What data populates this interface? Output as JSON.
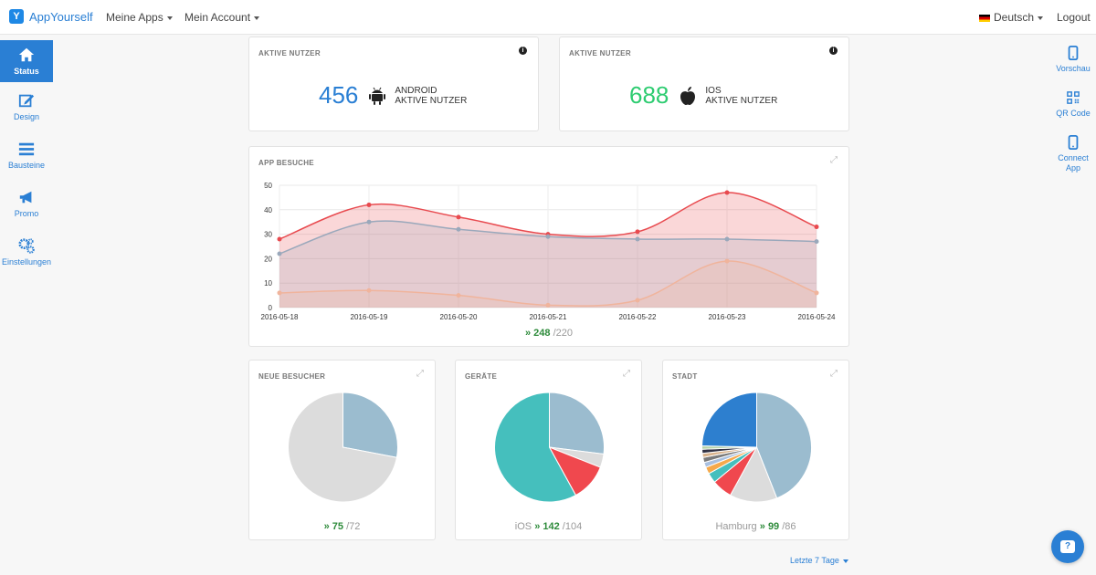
{
  "nav": {
    "logo_text": "AppYourself",
    "menu_apps": "Meine Apps",
    "menu_account": "Mein Account",
    "language": "Deutsch",
    "logout": "Logout"
  },
  "sidebar_left": [
    {
      "label": "Status",
      "icon": "home-icon",
      "active": true
    },
    {
      "label": "Design",
      "icon": "edit-icon"
    },
    {
      "label": "Bausteine",
      "icon": "menu-icon"
    },
    {
      "label": "Promo",
      "icon": "megaphone-icon"
    },
    {
      "label": "Einstellungen",
      "icon": "gears-icon"
    }
  ],
  "sidebar_right": [
    {
      "label": "Vorschau",
      "icon": "phone-icon"
    },
    {
      "label": "QR Code",
      "icon": "qr-code-icon"
    },
    {
      "label": "Connect App",
      "icon": "phone-icon"
    }
  ],
  "android_card": {
    "title": "AKTIVE NUTZER",
    "value": "456",
    "label_line1": "ANDROID",
    "label_line2": "AKTIVE NUTZER",
    "color": "#2a7fd4"
  },
  "ios_card": {
    "title": "AKTIVE NUTZER",
    "value": "688",
    "label_line1": "IOS",
    "label_line2": "AKTIVE NUTZER",
    "color": "#2ecc71"
  },
  "visits_card": {
    "title": "APP BESUCHE",
    "trend_value": "248",
    "trend_prev": "/220"
  },
  "chart_data": [
    {
      "type": "area",
      "title": "APP BESUCHE",
      "x": [
        "2016-05-18",
        "2016-05-19",
        "2016-05-20",
        "2016-05-21",
        "2016-05-22",
        "2016-05-23",
        "2016-05-24"
      ],
      "ylim": [
        0,
        50
      ],
      "yticks": [
        0,
        10,
        20,
        30,
        40,
        50
      ],
      "grid": true,
      "series": [
        {
          "values": [
            28,
            42,
            37,
            30,
            31,
            47,
            33
          ],
          "color": "#e84a4f"
        },
        {
          "values": [
            22,
            35,
            32,
            29,
            28,
            28,
            27
          ],
          "color": "#9aa8bb"
        },
        {
          "values": [
            6,
            7,
            5,
            1,
            3,
            19,
            6
          ],
          "color": "#f0b49c"
        }
      ]
    },
    {
      "type": "pie",
      "title": "NEUE BESUCHER",
      "values": [
        28,
        72
      ],
      "colors": [
        "#9bbccf",
        "#dcdcdc"
      ]
    },
    {
      "type": "pie",
      "title": "GERÄTE",
      "values": [
        27,
        4,
        11,
        58
      ],
      "colors": [
        "#9bbccf",
        "#dcdcdc",
        "#f0484e",
        "#45bfbd"
      ]
    },
    {
      "type": "pie",
      "title": "STADT",
      "values": [
        44,
        14,
        6,
        3,
        2,
        1.5,
        1.5,
        1.2,
        1.2,
        1,
        24.6
      ],
      "colors": [
        "#9bbccf",
        "#dcdcdc",
        "#f0484e",
        "#45bfbd",
        "#f5a94b",
        "#a9c0e0",
        "#7a7a7a",
        "#d9b38c",
        "#333344",
        "#b7d3a8",
        "#2d7fcf"
      ]
    }
  ],
  "new_visitors_card": {
    "title": "NEUE BESUCHER",
    "trend_value": "75",
    "trend_prev": "/72"
  },
  "devices_card": {
    "title": "GERÄTE",
    "trend_label": "iOS",
    "trend_value": "142",
    "trend_prev": "/104"
  },
  "city_card": {
    "title": "STADT",
    "trend_label": "Hamburg",
    "trend_value": "99",
    "trend_prev": "/86"
  },
  "footer": {
    "range_label": "Letzte 7 Tage"
  }
}
